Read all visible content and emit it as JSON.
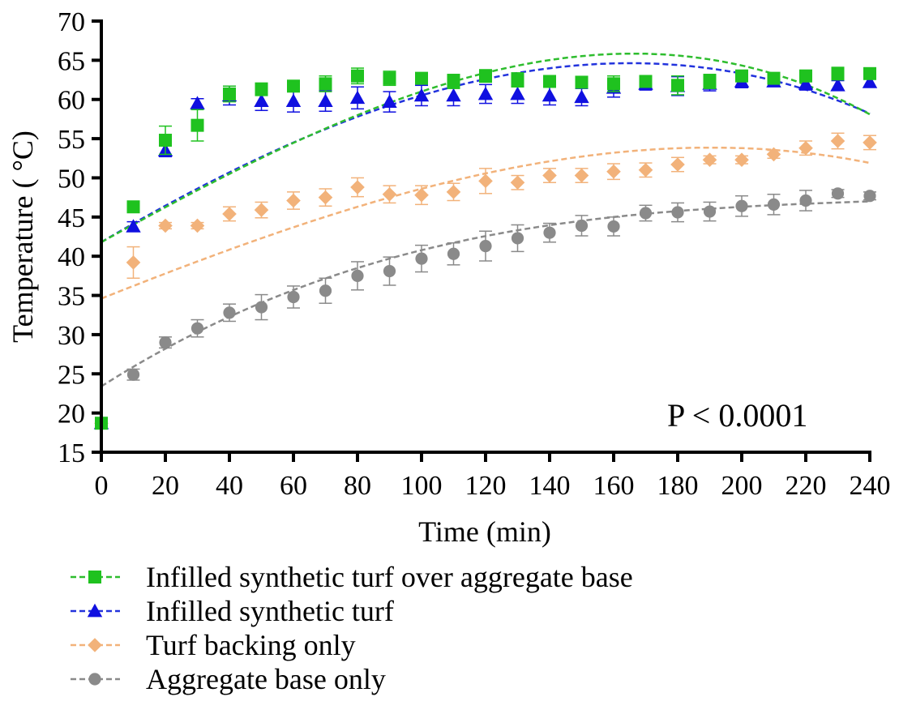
{
  "chart_data": {
    "type": "scatter",
    "title": "",
    "xlabel": "Time (min)",
    "ylabel": "Temperature ( °C)",
    "xlim": [
      0,
      240
    ],
    "ylim": [
      15,
      70
    ],
    "xticks": [
      0,
      20,
      40,
      60,
      80,
      100,
      120,
      140,
      160,
      180,
      200,
      220,
      240
    ],
    "yticks": [
      15,
      20,
      25,
      30,
      35,
      40,
      45,
      50,
      55,
      60,
      65,
      70
    ],
    "grid": false,
    "legend_position": "bottom",
    "annotation": "P < 0.0001",
    "x": [
      0,
      10,
      20,
      30,
      40,
      50,
      60,
      70,
      80,
      90,
      100,
      110,
      120,
      130,
      140,
      150,
      160,
      170,
      180,
      190,
      200,
      210,
      220,
      230,
      240
    ],
    "series": [
      {
        "name": "Infilled synthetic turf over aggregate base",
        "marker": "square",
        "color": "#1fc21f",
        "fit_color": "#2ebd2e",
        "values": [
          18.7,
          46.3,
          54.8,
          56.7,
          60.7,
          61.3,
          61.7,
          62.0,
          63.0,
          62.7,
          62.7,
          62.3,
          63.0,
          62.5,
          62.3,
          62.2,
          62.0,
          62.3,
          61.8,
          62.3,
          63.0,
          62.7,
          63.0,
          63.3,
          63.3
        ],
        "errors": [
          0.4,
          0.5,
          1.8,
          2.0,
          1.0,
          0.8,
          0.7,
          1.0,
          1.0,
          0.9,
          0.7,
          0.9,
          0.8,
          0.9,
          0.7,
          0.7,
          1.0,
          0.7,
          1.2,
          0.9,
          0.7,
          0.6,
          0.7,
          0.8,
          0.7
        ],
        "fit": [
          41.8,
          58.0,
          65.8,
          58.1
        ]
      },
      {
        "name": "Infilled synthetic turf",
        "marker": "triangle",
        "color": "#1010e0",
        "fit_color": "#2233dd",
        "values": [
          18.7,
          43.8,
          53.5,
          59.5,
          60.5,
          59.8,
          59.8,
          59.8,
          60.2,
          59.7,
          60.5,
          60.5,
          60.7,
          60.7,
          60.5,
          60.3,
          61.5,
          62.0,
          61.7,
          62.0,
          62.3,
          62.3,
          62.0,
          61.8,
          62.2
        ],
        "errors": [
          0.4,
          0.6,
          0.8,
          0.6,
          1.2,
          1.2,
          1.4,
          1.3,
          1.4,
          1.3,
          1.3,
          1.3,
          1.2,
          1.2,
          1.2,
          1.1,
          1.2,
          0.8,
          1.2,
          0.9,
          0.8,
          0.6,
          0.8,
          0.6,
          0.6
        ],
        "fit": [
          41.8,
          57.8,
          64.6,
          58.2
        ]
      },
      {
        "name": "Turf backing only",
        "marker": "diamond",
        "color": "#f2b27a",
        "fit_color": "#f2b27a",
        "values": [
          18.7,
          39.2,
          43.9,
          43.9,
          45.4,
          45.9,
          47.1,
          47.5,
          48.8,
          47.9,
          47.8,
          48.2,
          49.6,
          49.4,
          50.3,
          50.3,
          50.8,
          51.0,
          51.7,
          52.3,
          52.3,
          53.0,
          53.8,
          54.7,
          54.5
        ],
        "errors": [
          0.4,
          2.0,
          0.4,
          0.4,
          0.9,
          1.0,
          1.1,
          1.1,
          1.2,
          1.1,
          1.2,
          1.1,
          1.6,
          0.9,
          0.9,
          0.9,
          1.0,
          0.9,
          0.9,
          0.5,
          0.5,
          0.5,
          0.9,
          1.0,
          0.9
        ],
        "fit": [
          34.6,
          46.3,
          53.2,
          51.9
        ]
      },
      {
        "name": "Aggregate base only",
        "marker": "circle",
        "color": "#8a8a8a",
        "fit_color": "#8a8a8a",
        "values": [
          18.7,
          24.9,
          29.0,
          30.8,
          32.8,
          33.5,
          34.8,
          35.6,
          37.5,
          38.1,
          39.7,
          40.3,
          41.3,
          42.3,
          43.0,
          43.9,
          43.8,
          45.5,
          45.6,
          45.7,
          46.4,
          46.6,
          47.1,
          48.0,
          47.7
        ],
        "errors": [
          0.4,
          0.7,
          0.7,
          1.1,
          1.1,
          1.6,
          1.4,
          1.6,
          1.8,
          1.8,
          1.7,
          1.4,
          1.9,
          1.7,
          1.2,
          1.3,
          1.2,
          1.0,
          1.2,
          1.2,
          1.3,
          1.3,
          1.3,
          0.5,
          0.5
        ],
        "fit": [
          23.4,
          38.5,
          45.0,
          47.0
        ]
      }
    ]
  }
}
